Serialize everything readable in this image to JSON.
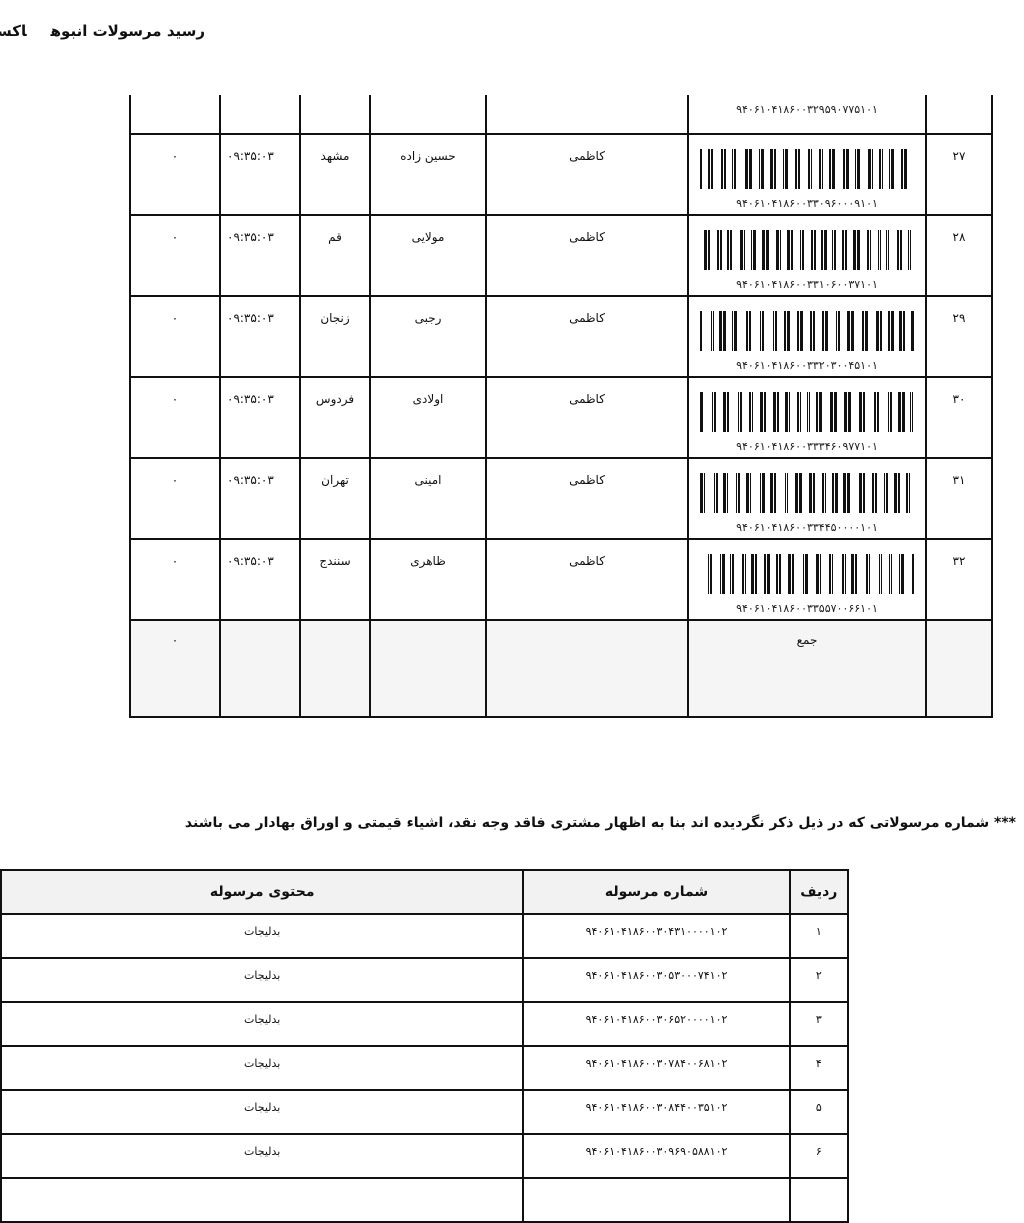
{
  "header": {
    "title": "رسید مرسولات انبوه",
    "title_cut": "اکسپ"
  },
  "table1": {
    "partial_barcode": "۹۴۰۶۱۰۴۱۸۶۰۰۳۲۹۵۹۰۷۷۵۱۰۱",
    "rows": [
      {
        "index": "۲۷",
        "barcode": "۹۴۰۶۱۰۴۱۸۶۰۰۳۳۰۹۶۰۰۰۹۱۰۱",
        "sender": "کاظمی",
        "receiver": "حسین زاده",
        "city": "مشهد",
        "time": "۰۹:۳۵:۰۳",
        "amount": "۰"
      },
      {
        "index": "۲۸",
        "barcode": "۹۴۰۶۱۰۴۱۸۶۰۰۳۳۱۰۶۰۰۳۷۱۰۱",
        "sender": "کاظمی",
        "receiver": "مولایی",
        "city": "قم",
        "time": "۰۹:۳۵:۰۳",
        "amount": "۰"
      },
      {
        "index": "۲۹",
        "barcode": "۹۴۰۶۱۰۴۱۸۶۰۰۳۳۲۰۳۰۰۴۵۱۰۱",
        "sender": "کاظمی",
        "receiver": "رجبی",
        "city": "زنجان",
        "time": "۰۹:۳۵:۰۳",
        "amount": "۰"
      },
      {
        "index": "۳۰",
        "barcode": "۹۴۰۶۱۰۴۱۸۶۰۰۳۳۳۴۶۰۹۷۷۱۰۱",
        "sender": "کاظمی",
        "receiver": "اولادی",
        "city": "فردوس",
        "time": "۰۹:۳۵:۰۳",
        "amount": "۰"
      },
      {
        "index": "۳۱",
        "barcode": "۹۴۰۶۱۰۴۱۸۶۰۰۳۳۴۴۵۰۰۰۰۱۰۱",
        "sender": "کاظمی",
        "receiver": "امینی",
        "city": "تهران",
        "time": "۰۹:۳۵:۰۳",
        "amount": "۰"
      },
      {
        "index": "۳۲",
        "barcode": "۹۴۰۶۱۰۴۱۸۶۰۰۳۳۵۵۷۰۰۶۶۱۰۱",
        "sender": "کاظمی",
        "receiver": "ظاهری",
        "city": "سنندج",
        "time": "۰۹:۳۵:۰۳",
        "amount": "۰"
      }
    ],
    "sum_label": "جمع",
    "sum_amount": "۰"
  },
  "note": "*** شماره مرسولاتی که در ذیل ذکر نگردیده اند بنا به اظهار مشتری فاقد وجه نقد، اشیاء قیمتی و اوراق بهادار می باشند",
  "table2": {
    "headers": {
      "index": "ردیف",
      "number": "شماره مرسوله",
      "content": "محتوی مرسوله"
    },
    "rows": [
      {
        "index": "۱",
        "number": "۹۴۰۶۱۰۴۱۸۶۰۰۳۰۴۳۱۰۰۰۰۱۰۲",
        "content": "بدلیجات"
      },
      {
        "index": "۲",
        "number": "۹۴۰۶۱۰۴۱۸۶۰۰۳۰۵۳۰۰۰۷۴۱۰۲",
        "content": "بدلیجات"
      },
      {
        "index": "۳",
        "number": "۹۴۰۶۱۰۴۱۸۶۰۰۳۰۶۵۲۰۰۰۰۱۰۲",
        "content": "بدلیجات"
      },
      {
        "index": "۴",
        "number": "۹۴۰۶۱۰۴۱۸۶۰۰۳۰۷۸۴۰۰۶۸۱۰۲",
        "content": "بدلیجات"
      },
      {
        "index": "۵",
        "number": "۹۴۰۶۱۰۴۱۸۶۰۰۳۰۸۴۴۰۰۳۵۱۰۲",
        "content": "بدلیجات"
      },
      {
        "index": "۶",
        "number": "۹۴۰۶۱۰۴۱۸۶۰۰۳۰۹۶۹۰۵۸۸۱۰۲",
        "content": "بدلیجات"
      },
      {
        "index": "",
        "number": "",
        "content": ""
      }
    ]
  }
}
